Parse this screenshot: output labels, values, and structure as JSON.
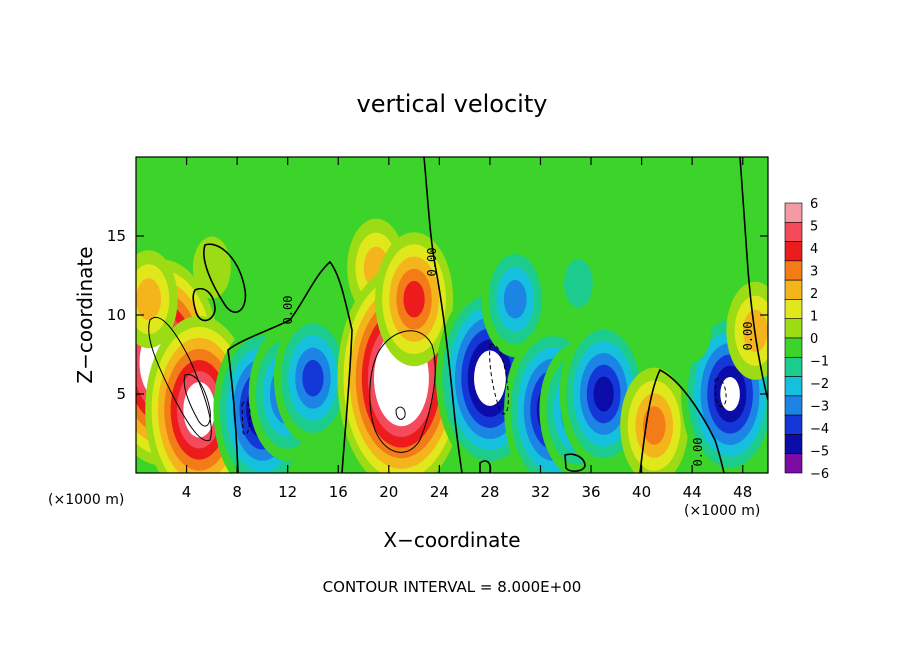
{
  "chart_data": {
    "type": "heatmap",
    "title": "vertical velocity",
    "xlabel": "X−coordinate",
    "ylabel": "Z−coordinate",
    "x_unit_left": "(×1000 m)",
    "x_unit_right": "(×1000 m)",
    "footer": "CONTOUR INTERVAL = 8.000E+00",
    "xlim": [
      0,
      50
    ],
    "ylim": [
      0,
      20
    ],
    "x_ticks": [
      4,
      8,
      12,
      16,
      20,
      24,
      28,
      32,
      36,
      40,
      44,
      48
    ],
    "y_ticks": [
      5,
      10,
      15
    ],
    "colorbar": {
      "levels": [
        6,
        5,
        4,
        3,
        2,
        1,
        0,
        -1,
        -2,
        -3,
        -4,
        -5,
        -6
      ],
      "colors": [
        "#f49aa2",
        "#f44a5c",
        "#ec1c1c",
        "#f47c18",
        "#f4b41c",
        "#e0e81c",
        "#9cdc14",
        "#3cd42a",
        "#1ccc8c",
        "#14c0dc",
        "#1c84e4",
        "#1438d8",
        "#0c0ca8",
        "#7c0ca4"
      ]
    },
    "contour_labels": [
      "0.00",
      "0.00",
      "0.00",
      "0.00"
    ],
    "cells": [
      {
        "x": 2,
        "z": 7,
        "w": 9
      },
      {
        "x": 5,
        "z": 4,
        "w": 8
      },
      {
        "x": 1,
        "z": 11,
        "w": 3
      },
      {
        "x": 6,
        "z": 13,
        "w": 1
      },
      {
        "x": 10,
        "z": 4,
        "w": -7
      },
      {
        "x": 12,
        "z": 5,
        "w": -5
      },
      {
        "x": 14,
        "z": 6,
        "w": -5
      },
      {
        "x": 19,
        "z": 13,
        "w": 3
      },
      {
        "x": 21,
        "z": 6,
        "w": 10
      },
      {
        "x": 22,
        "z": 11,
        "w": 5
      },
      {
        "x": 28,
        "z": 6,
        "w": -8
      },
      {
        "x": 30,
        "z": 11,
        "w": -4
      },
      {
        "x": 33,
        "z": 4,
        "w": -7
      },
      {
        "x": 35,
        "z": 4,
        "w": -5
      },
      {
        "x": 37,
        "z": 5,
        "w": -6
      },
      {
        "x": 35,
        "z": 12,
        "w": -2
      },
      {
        "x": 41,
        "z": 3,
        "w": 4
      },
      {
        "x": 47,
        "z": 5,
        "w": -7
      },
      {
        "x": 49,
        "z": 9,
        "w": 3
      },
      {
        "x": 44,
        "z": 9,
        "w": -1
      }
    ]
  }
}
